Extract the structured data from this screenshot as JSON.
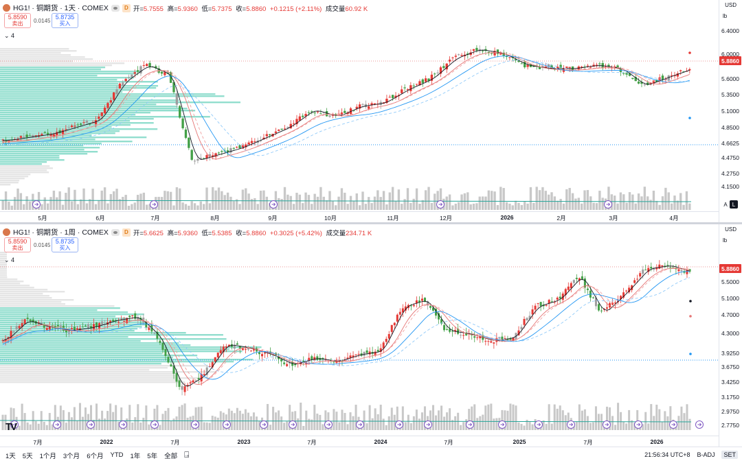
{
  "colors": {
    "up": "#e53935",
    "down": "#43a047",
    "accent": "#2962ff",
    "profile": "#48c6b0"
  },
  "panes": [
    {
      "title": "HG1! · 铜期货 · 1天 · COMEX",
      "badge": "D",
      "ohlc": {
        "o_label": "开=",
        "o": "5.7555",
        "h_label": "高=",
        "h": "5.9360",
        "l_label": "低=",
        "l": "5.7375",
        "c_label": "收=",
        "c": "5.8860",
        "chg": "+0.1215 (+2.11%)",
        "vol_label": "成交量",
        "vol": "60.92 K"
      },
      "sell": {
        "price": "5.8590",
        "label": "卖出"
      },
      "buy": {
        "price": "5.8735",
        "label": "买入"
      },
      "spread": "0.0145",
      "layers": "4",
      "currency": "USD",
      "unit": "lb",
      "last_price": "5.8860",
      "y_labels": [
        "6.4000",
        "6.0000",
        "5.6000",
        "5.3500",
        "5.1000",
        "4.8500",
        "4.6625",
        "4.4750",
        "4.2750",
        "4.1500"
      ],
      "x_labels": [
        "5月",
        "6月",
        "7月",
        "8月",
        "9月",
        "10月",
        "11月",
        "12月",
        "2026",
        "2月",
        "3月",
        "4月"
      ],
      "x_bold": [
        "2026"
      ],
      "scale_a": "A",
      "scale_l": "L"
    },
    {
      "title": "HG1! · 铜期货 · 1周 · COMEX",
      "badge": "D",
      "ohlc": {
        "o_label": "开=",
        "o": "5.6625",
        "h_label": "高=",
        "h": "5.9360",
        "l_label": "低=",
        "l": "5.5385",
        "c_label": "收=",
        "c": "5.8860",
        "chg": "+0.3025 (+5.42%)",
        "vol_label": "成交量",
        "vol": "234.71 K"
      },
      "sell": {
        "price": "5.8590",
        "label": "卖出"
      },
      "buy": {
        "price": "5.8735",
        "label": "买入"
      },
      "spread": "0.0145",
      "layers": "4",
      "currency": "USD",
      "unit": "lb",
      "last_price": "5.8860",
      "y_labels": [
        "5.5000",
        "5.1000",
        "4.7000",
        "4.3000",
        "3.9250",
        "3.6750",
        "3.4250",
        "3.1750",
        "2.9750",
        "2.7750"
      ],
      "x_labels": [
        "7月",
        "2022",
        "7月",
        "2023",
        "7月",
        "2024",
        "7月",
        "2025",
        "7月",
        "2026"
      ],
      "x_bold": [
        "2022",
        "2023",
        "2024",
        "2025",
        "2026"
      ]
    }
  ],
  "bottom_bar": {
    "ranges": [
      "1天",
      "5天",
      "1个月",
      "3个月",
      "6个月",
      "YTD",
      "1年",
      "5年",
      "全部"
    ],
    "time": "21:56:34 UTC+8",
    "adj": "B-ADJ",
    "session": "SET"
  }
}
